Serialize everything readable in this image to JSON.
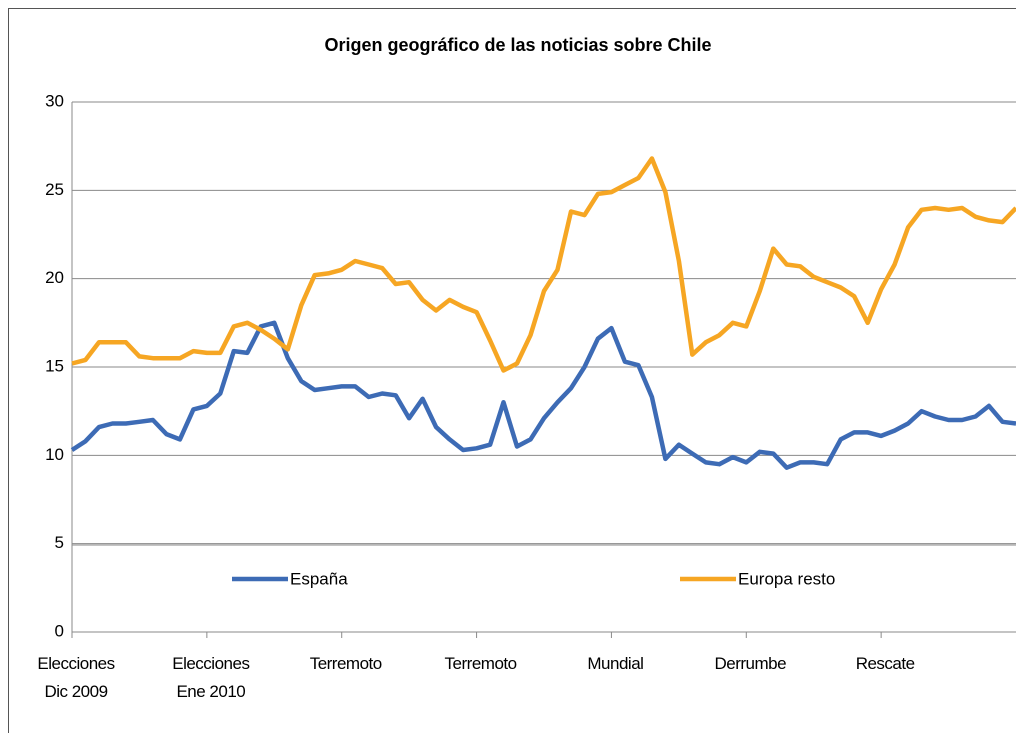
{
  "chart_data": {
    "type": "line",
    "title": "Origen geográfico de las noticias sobre Chile",
    "categories": [
      "Elecciones\nDic 2009",
      null,
      null,
      null,
      null,
      null,
      null,
      null,
      null,
      null,
      "Elecciones\nEne 2010",
      null,
      null,
      null,
      null,
      null,
      null,
      null,
      null,
      null,
      "Terremoto",
      null,
      null,
      null,
      null,
      null,
      null,
      null,
      null,
      null,
      "Terremoto",
      null,
      null,
      null,
      null,
      null,
      null,
      null,
      null,
      null,
      "Mundial",
      null,
      null,
      null,
      null,
      null,
      null,
      null,
      null,
      null,
      "Derrumbe",
      null,
      null,
      null,
      null,
      null,
      null,
      null,
      null,
      null,
      "Rescate",
      null,
      null,
      null,
      null,
      null,
      null,
      null,
      null,
      null,
      null
    ],
    "series": [
      {
        "name": "España",
        "color": "#3d6bb5",
        "values": [
          10.3,
          10.8,
          11.6,
          11.8,
          11.8,
          11.9,
          12.0,
          11.2,
          10.9,
          12.6,
          12.8,
          13.5,
          15.9,
          15.8,
          17.3,
          17.5,
          15.5,
          14.2,
          13.7,
          13.8,
          13.9,
          13.9,
          13.3,
          13.5,
          13.4,
          12.1,
          13.2,
          11.6,
          10.9,
          10.3,
          10.4,
          10.6,
          13.0,
          10.5,
          10.9,
          12.1,
          13.0,
          13.8,
          15.0,
          16.6,
          17.2,
          15.3,
          15.1,
          13.3,
          9.8,
          10.6,
          10.1,
          9.6,
          9.5,
          9.9,
          9.6,
          10.2,
          10.1,
          9.3,
          9.6,
          9.6,
          9.5,
          10.9,
          11.3,
          11.3,
          11.1,
          11.4,
          11.8,
          12.5,
          12.2,
          12.0,
          12.0,
          12.2,
          12.8,
          11.9,
          11.8
        ]
      },
      {
        "name": "Europa resto",
        "color": "#f6a623",
        "values": [
          15.2,
          15.4,
          16.4,
          16.4,
          16.4,
          15.6,
          15.5,
          15.5,
          15.5,
          15.9,
          15.8,
          15.8,
          17.3,
          17.5,
          17.1,
          16.6,
          16.0,
          18.5,
          20.2,
          20.3,
          20.5,
          21.0,
          20.8,
          20.6,
          19.7,
          19.8,
          18.8,
          18.2,
          18.8,
          18.4,
          18.1,
          16.5,
          14.8,
          15.2,
          16.8,
          19.3,
          20.5,
          23.8,
          23.6,
          24.8,
          24.9,
          25.3,
          25.7,
          26.8,
          24.9,
          21.0,
          15.7,
          16.4,
          16.8,
          17.5,
          17.3,
          19.3,
          21.7,
          20.8,
          20.7,
          20.1,
          19.8,
          19.5,
          19.0,
          17.5,
          19.4,
          20.8,
          22.9,
          23.9,
          24.0,
          23.9,
          24.0,
          23.5,
          23.3,
          23.2,
          24.0
        ]
      }
    ],
    "ylim": [
      0,
      30
    ],
    "yticks": [
      0,
      5,
      10,
      15,
      20,
      25,
      30
    ],
    "grid": true,
    "legend": "bottom"
  }
}
